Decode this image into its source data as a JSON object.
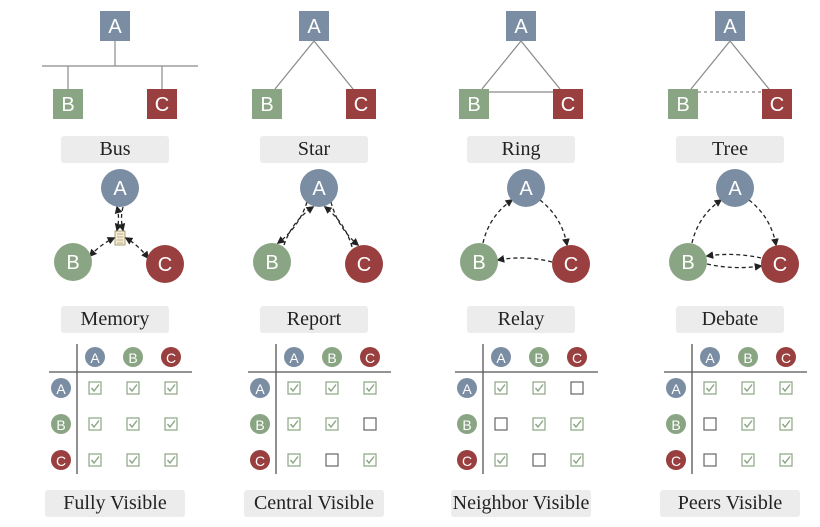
{
  "nodes": {
    "A": "A",
    "B": "B",
    "C": "C"
  },
  "colors": {
    "A": "#7a8da3",
    "B": "#8aa583",
    "C": "#9a3f3f",
    "line": "#8a8a8a",
    "check": "#8aa583",
    "matrix_line": "#555555"
  },
  "columns": [
    {
      "topology": "Bus",
      "topology_type": "bus",
      "communication": "Memory",
      "comm_type": "memory",
      "visibility": "Fully Visible",
      "matrix": [
        [
          true,
          true,
          true
        ],
        [
          true,
          true,
          true
        ],
        [
          true,
          true,
          true
        ]
      ]
    },
    {
      "topology": "Star",
      "topology_type": "star",
      "communication": "Report",
      "comm_type": "report",
      "visibility": "Central Visible",
      "matrix": [
        [
          true,
          true,
          true
        ],
        [
          true,
          true,
          false
        ],
        [
          true,
          false,
          true
        ]
      ]
    },
    {
      "topology": "Ring",
      "topology_type": "ring",
      "communication": "Relay",
      "comm_type": "relay",
      "visibility": "Neighbor Visible",
      "matrix": [
        [
          true,
          true,
          false
        ],
        [
          false,
          true,
          true
        ],
        [
          true,
          false,
          true
        ]
      ]
    },
    {
      "topology": "Tree",
      "topology_type": "tree",
      "communication": "Debate",
      "comm_type": "debate",
      "visibility": "Peers Visible",
      "matrix": [
        [
          true,
          true,
          true
        ],
        [
          false,
          true,
          true
        ],
        [
          false,
          true,
          true
        ]
      ]
    }
  ]
}
